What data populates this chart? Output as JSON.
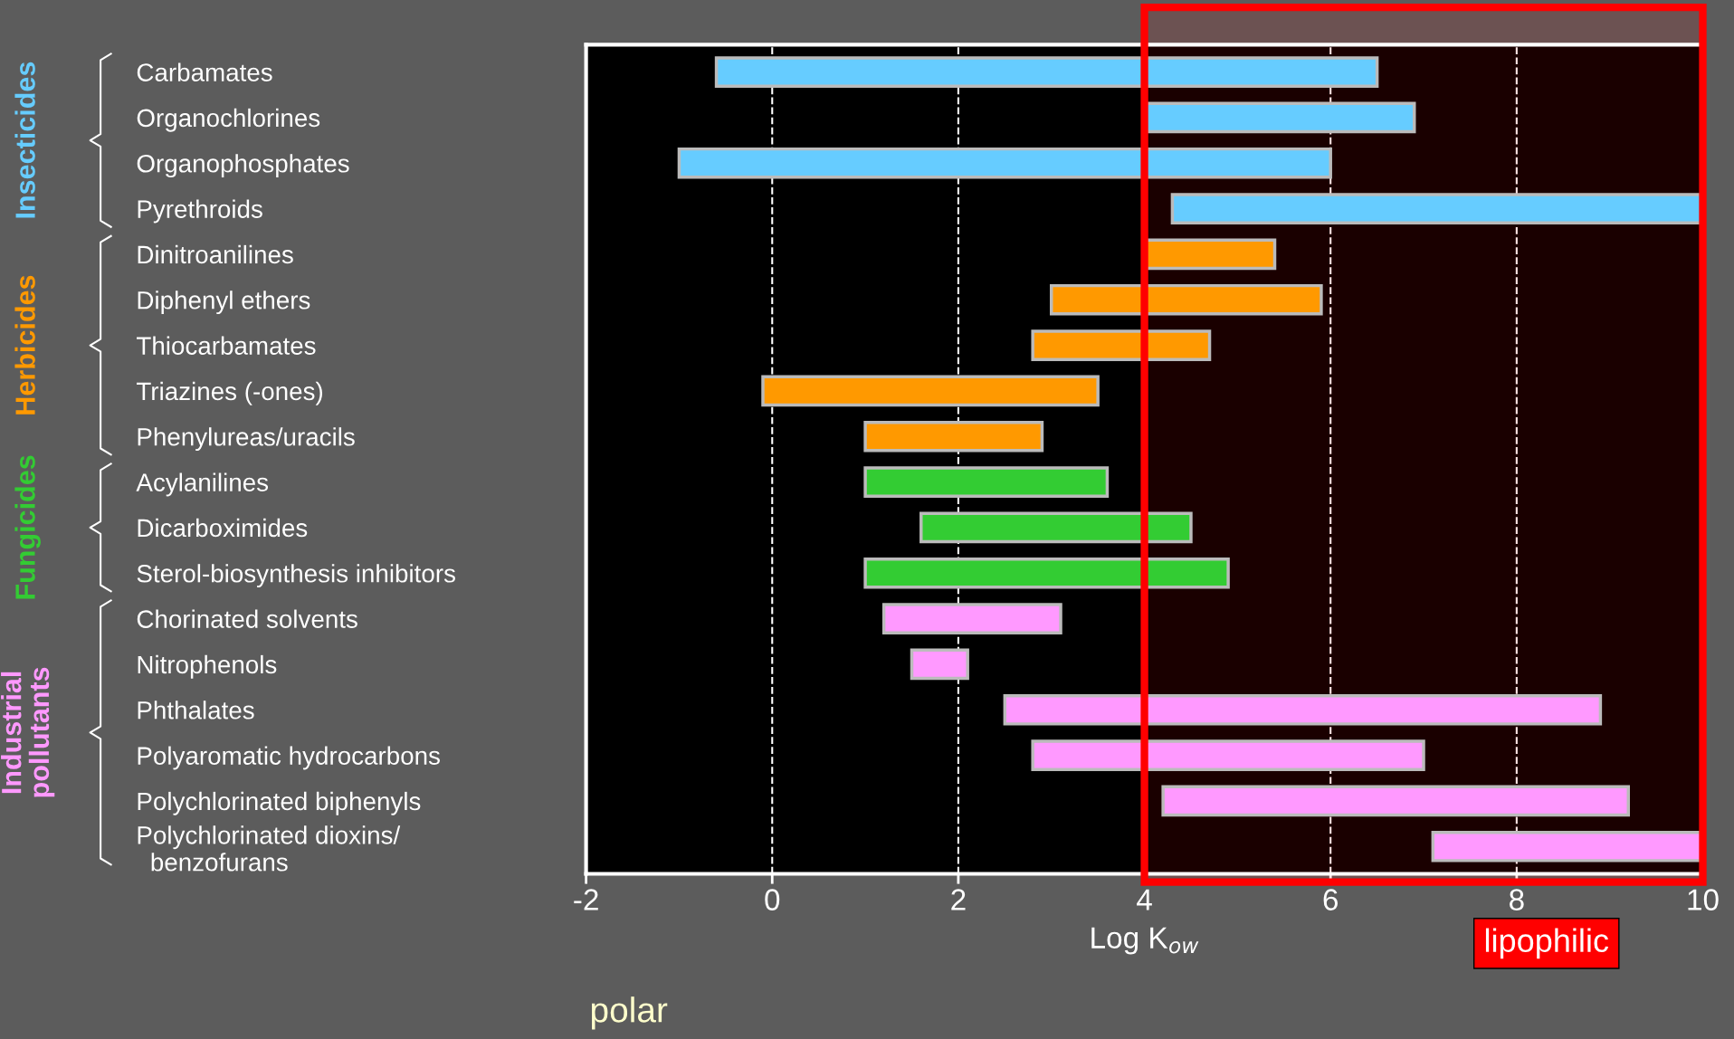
{
  "chart_data": {
    "type": "bar",
    "orientation": "horizontal",
    "xlabel": "Log K$_{ow}$",
    "categories": [
      "Carbamates",
      "Organochlorines",
      "Organophosphates",
      "Pyrethroids",
      "Dinitroanilines",
      "Diphenyl ethers",
      "Thiocarbamates",
      "Triazines (-ones)",
      "Phenylureas/uracils",
      "Acylanilines",
      "Dicarboximides",
      "Sterol-biosynthesis inhibitors",
      "Chorinated solvents",
      "Nitrophenols",
      "Phthalates",
      "Polyaromatic hydrocarbons",
      "Polychlorinated biphenyls",
      "Polychlorinated dioxins/\n  benzofurans"
    ],
    "base": [
      -0.6,
      4.0,
      -1.0,
      4.3,
      4.0,
      3.0,
      2.8,
      -0.1,
      1.0,
      1.0,
      1.6,
      1.0,
      1.2,
      1.5,
      2.5,
      2.8,
      4.2,
      7.1
    ],
    "values": [
      7.1,
      2.9,
      7.0,
      5.7,
      1.4,
      2.9,
      1.9,
      3.6,
      1.9,
      2.6,
      2.9,
      3.9,
      1.9,
      0.6,
      6.4,
      4.2,
      5.0,
      2.9
    ],
    "colors": [
      "#66ccff",
      "#66ccff",
      "#66ccff",
      "#66ccff",
      "#ff9900",
      "#ff9900",
      "#ff9900",
      "#ff9900",
      "#ff9900",
      "#33cc33",
      "#33cc33",
      "#33cc33",
      "#ff99ff",
      "#ff99ff",
      "#ff99ff",
      "#ff99ff",
      "#ff99ff",
      "#ff99ff"
    ],
    "xlim": [
      -2,
      10
    ],
    "xticks": [
      -2,
      0,
      2,
      4,
      6,
      8,
      10
    ],
    "grid": "x",
    "bands": [
      {
        "axis": "x",
        "from": 4,
        "to": 10,
        "label": "lipophilic",
        "color": "#ff0000"
      }
    ],
    "annotations": [
      "Insecticides",
      "Herbicides",
      "Fungicides",
      "Industrial\npollutants",
      "polar"
    ]
  }
}
